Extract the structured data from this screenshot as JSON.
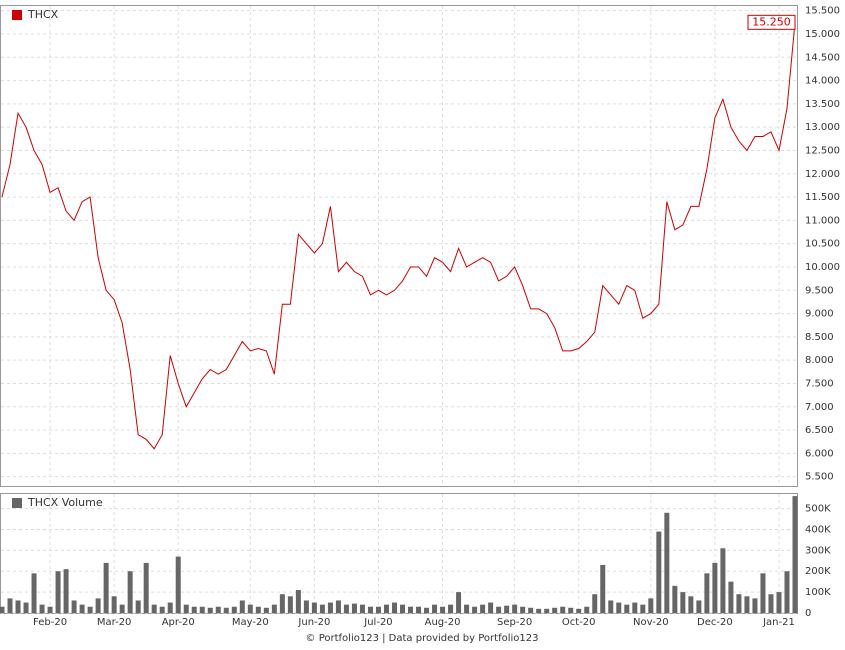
{
  "chart_data": [
    {
      "type": "line",
      "legend": "upper left",
      "grid": true,
      "series": [
        {
          "name": "THCX",
          "color": "#cc0000",
          "values": [
            11.5,
            12.2,
            13.3,
            13.0,
            12.5,
            12.2,
            11.6,
            11.7,
            11.2,
            11.0,
            11.4,
            11.5,
            10.2,
            9.5,
            9.3,
            8.8,
            7.8,
            6.4,
            6.3,
            6.1,
            6.4,
            8.1,
            7.5,
            7.0,
            7.3,
            7.6,
            7.8,
            7.7,
            7.8,
            8.1,
            8.4,
            8.2,
            8.25,
            8.2,
            7.7,
            9.2,
            9.2,
            10.7,
            10.5,
            10.3,
            10.5,
            11.3,
            9.9,
            10.1,
            9.9,
            9.8,
            9.4,
            9.5,
            9.4,
            9.5,
            9.7,
            10.0,
            10.0,
            9.8,
            10.2,
            10.1,
            9.9,
            10.4,
            10.0,
            10.1,
            10.2,
            10.1,
            9.7,
            9.8,
            10.0,
            9.6,
            9.1,
            9.1,
            9.0,
            8.7,
            8.2,
            8.2,
            8.25,
            8.4,
            8.6,
            9.6,
            9.4,
            9.2,
            9.6,
            9.5,
            8.9,
            9.0,
            9.2,
            11.4,
            10.8,
            10.9,
            11.3,
            11.3,
            12.1,
            13.2,
            13.6,
            13.0,
            12.7,
            12.5,
            12.8,
            12.8,
            12.9,
            12.5,
            13.4,
            15.25
          ],
          "value_labels": [
            null,
            null,
            null,
            null,
            null,
            null,
            null,
            null,
            null,
            null,
            null,
            null,
            null,
            null,
            null,
            null,
            null,
            null,
            null,
            null,
            null,
            null,
            null,
            null,
            null,
            null,
            null,
            null,
            null,
            null,
            null,
            null,
            null,
            null,
            null,
            null,
            null,
            null,
            null,
            null,
            null,
            null,
            null,
            null,
            null,
            null,
            null,
            null,
            null,
            null,
            null,
            null,
            null,
            null,
            null,
            null,
            null,
            null,
            null,
            null,
            null,
            null,
            null,
            null,
            null,
            null,
            null,
            null,
            null,
            null,
            null,
            null,
            null,
            null,
            null,
            null,
            null,
            null,
            null,
            null,
            null,
            null,
            null,
            null,
            null,
            null,
            null,
            null,
            null,
            null,
            null,
            null,
            null,
            null,
            null,
            null,
            null,
            null,
            null,
            "15.250"
          ]
        }
      ],
      "ylim": [
        5.3,
        15.6
      ],
      "yticks": [
        {
          "value": 5.5,
          "label": "5.500"
        },
        {
          "value": 6,
          "label": "6.000"
        },
        {
          "value": 6.5,
          "label": "6.500"
        },
        {
          "value": 7,
          "label": "7.000"
        },
        {
          "value": 7.5,
          "label": "7.500"
        },
        {
          "value": 8,
          "label": "8.000"
        },
        {
          "value": 8.5,
          "label": "8.500"
        },
        {
          "value": 9,
          "label": "9.000"
        },
        {
          "value": 9.5,
          "label": "9.500"
        },
        {
          "value": 10,
          "label": "10.000"
        },
        {
          "value": 10.5,
          "label": "10.500"
        },
        {
          "value": 11,
          "label": "11.000"
        },
        {
          "value": 11.5,
          "label": "11.500"
        },
        {
          "value": 12,
          "label": "12.000"
        },
        {
          "value": 12.5,
          "label": "12.500"
        },
        {
          "value": 13,
          "label": "13.000"
        },
        {
          "value": 13.5,
          "label": "13.500"
        },
        {
          "value": 14,
          "label": "14.000"
        },
        {
          "value": 14.5,
          "label": "14.500"
        },
        {
          "value": 15,
          "label": "15.000"
        },
        {
          "value": 15.5,
          "label": "15.500"
        }
      ]
    },
    {
      "type": "bar",
      "legend": "upper left",
      "grid": true,
      "categories": [
        null,
        null,
        null,
        null,
        null,
        null,
        "Feb-20",
        null,
        null,
        null,
        null,
        null,
        null,
        null,
        "Mar-20",
        null,
        null,
        null,
        null,
        null,
        null,
        null,
        "Apr-20",
        null,
        null,
        null,
        null,
        null,
        null,
        null,
        null,
        "May-20",
        null,
        null,
        null,
        null,
        null,
        null,
        null,
        "Jun-20",
        null,
        null,
        null,
        null,
        null,
        null,
        null,
        "Jul-20",
        null,
        null,
        null,
        null,
        null,
        null,
        null,
        "Aug-20",
        null,
        null,
        null,
        null,
        null,
        null,
        null,
        null,
        "Sep-20",
        null,
        null,
        null,
        null,
        null,
        null,
        null,
        "Oct-20",
        null,
        null,
        null,
        null,
        null,
        null,
        null,
        null,
        "Nov-20",
        null,
        null,
        null,
        null,
        null,
        null,
        null,
        "Dec-20",
        null,
        null,
        null,
        null,
        null,
        null,
        null,
        "Jan-21",
        null,
        null
      ],
      "series": [
        {
          "name": "THCX Volume",
          "color": "#666666",
          "values": [
            30000,
            70000,
            60000,
            50000,
            190000,
            40000,
            30000,
            200000,
            210000,
            60000,
            40000,
            30000,
            70000,
            240000,
            80000,
            40000,
            200000,
            60000,
            240000,
            40000,
            30000,
            50000,
            270000,
            40000,
            30000,
            30000,
            25000,
            30000,
            25000,
            30000,
            60000,
            40000,
            30000,
            25000,
            40000,
            90000,
            80000,
            110000,
            60000,
            50000,
            40000,
            50000,
            60000,
            40000,
            45000,
            40000,
            30000,
            30000,
            40000,
            50000,
            40000,
            30000,
            30000,
            25000,
            40000,
            30000,
            40000,
            100000,
            40000,
            30000,
            40000,
            50000,
            30000,
            35000,
            40000,
            30000,
            25000,
            20000,
            20000,
            25000,
            30000,
            25000,
            20000,
            30000,
            90000,
            230000,
            60000,
            50000,
            40000,
            50000,
            40000,
            70000,
            390000,
            480000,
            130000,
            100000,
            80000,
            60000,
            190000,
            240000,
            310000,
            150000,
            90000,
            80000,
            70000,
            190000,
            90000,
            100000,
            200000,
            560000
          ]
        }
      ],
      "ylim": [
        0,
        570000
      ],
      "yticks": [
        0,
        {
          "value": 100000,
          "label": "100K"
        },
        {
          "value": 200000,
          "label": "200K"
        },
        {
          "value": 300000,
          "label": "300K"
        },
        {
          "value": 400000,
          "label": "400K"
        },
        {
          "value": 500000,
          "label": "500K"
        }
      ]
    }
  ],
  "footer": "© Portfolio123 | Data provided by Portfolio123"
}
